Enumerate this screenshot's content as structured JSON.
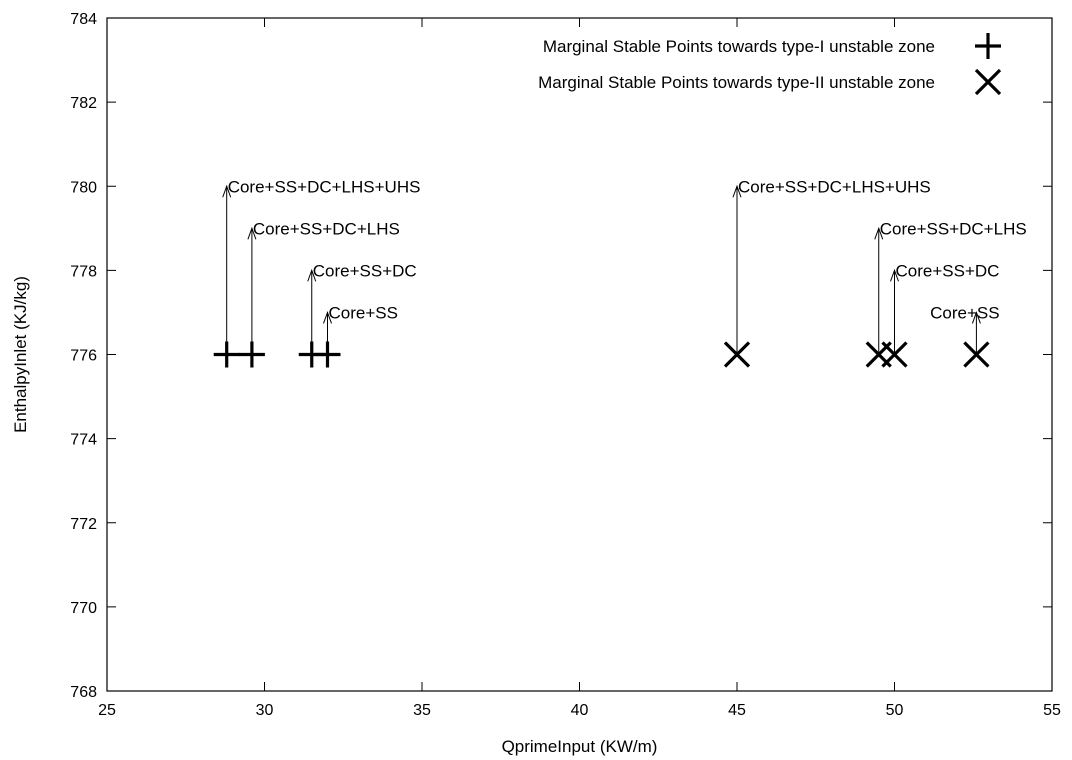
{
  "chart_data": {
    "type": "scatter",
    "xlabel": "QprimeInput (KW/m)",
    "ylabel": "EnthalpyInlet (KJ/kg)",
    "xlim": [
      25,
      55
    ],
    "ylim": [
      768,
      784
    ],
    "xticks": [
      25,
      30,
      35,
      40,
      45,
      50,
      55
    ],
    "yticks": [
      768,
      770,
      772,
      774,
      776,
      778,
      780,
      782,
      784
    ],
    "grid": false,
    "legend_position": "top-right",
    "series": [
      {
        "name": "Marginal Stable Points towards type-I unstable zone",
        "marker": "plus",
        "x": [
          28.8,
          29.6,
          31.5,
          32.0
        ],
        "y": [
          776,
          776,
          776,
          776
        ]
      },
      {
        "name": "Marginal Stable Points towards type-II unstable zone",
        "marker": "cross",
        "x": [
          45.0,
          49.5,
          50.0,
          52.6
        ],
        "y": [
          776,
          776,
          776,
          776
        ]
      }
    ],
    "annotations": [
      {
        "text": "Core+SS+DC+LHS+UHS",
        "arrow_x": 28.8,
        "arrow_y_from": 776,
        "arrow_y_to": 780,
        "label_x": 28.8,
        "label_y": 780
      },
      {
        "text": "Core+SS+DC+LHS",
        "arrow_x": 29.6,
        "arrow_y_from": 776,
        "arrow_y_to": 779,
        "label_x": 29.6,
        "label_y": 779
      },
      {
        "text": "Core+SS+DC",
        "arrow_x": 31.5,
        "arrow_y_from": 776,
        "arrow_y_to": 778,
        "label_x": 31.5,
        "label_y": 778
      },
      {
        "text": "Core+SS",
        "arrow_x": 32.0,
        "arrow_y_from": 776,
        "arrow_y_to": 777,
        "label_x": 32.0,
        "label_y": 777
      },
      {
        "text": "Core+SS+DC+LHS+UHS",
        "arrow_x": 45.0,
        "arrow_y_from": 776,
        "arrow_y_to": 780,
        "label_x": 45.0,
        "label_y": 780
      },
      {
        "text": "Core+SS+DC+LHS",
        "arrow_x": 49.5,
        "arrow_y_from": 776,
        "arrow_y_to": 779,
        "label_x": 49.5,
        "label_y": 779
      },
      {
        "text": "Core+SS+DC",
        "arrow_x": 50.0,
        "arrow_y_from": 776,
        "arrow_y_to": 778,
        "label_x": 50.0,
        "label_y": 778
      },
      {
        "text": "Core+SS",
        "arrow_x": 52.6,
        "arrow_y_from": 776,
        "arrow_y_to": 777,
        "label_x": 51.1,
        "label_y": 777
      }
    ]
  }
}
